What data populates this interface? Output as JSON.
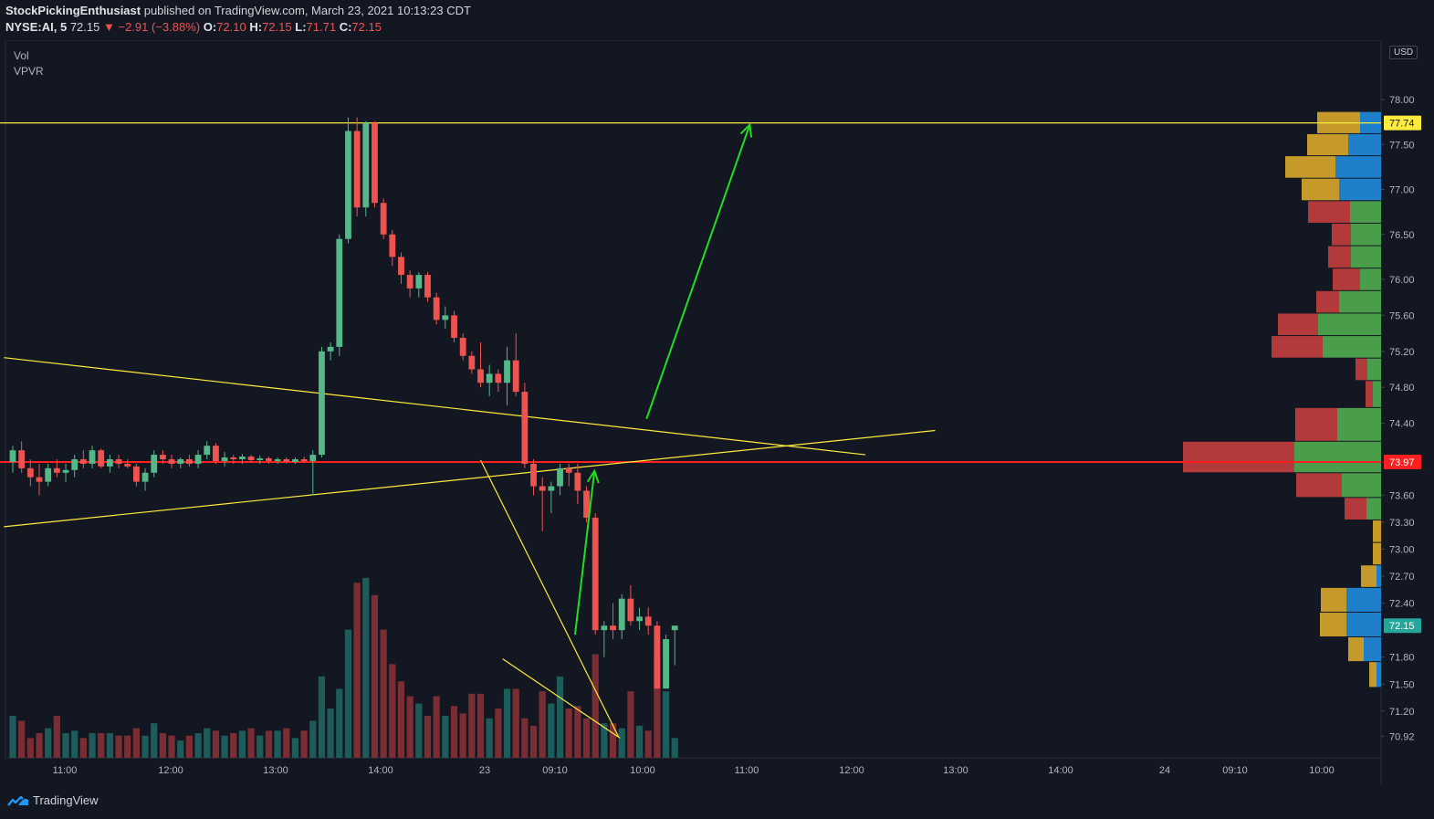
{
  "header": {
    "author": "StockPickingEnthusiast",
    "published": "published on TradingView.com, March 23, 2021 10:13:23 CDT",
    "symbol": "NYSE:AI, 5",
    "last": "72.15",
    "change_arrow": "▼",
    "change": "−2.91 (−3.88%)",
    "o_label": "O:",
    "o": "72.10",
    "h_label": "H:",
    "h": "72.15",
    "l_label": "L:",
    "l": "71.71",
    "c_label": "C:",
    "c": "72.15"
  },
  "legend": {
    "vol": "Vol",
    "vpvr": "VPVR"
  },
  "currency": "USD",
  "footer": {
    "brand": "TradingView",
    "logo_icon": "tradingview-logo-icon"
  },
  "colors": {
    "up": "#26a69a",
    "down": "#ef5350",
    "up_candle": "#54b889",
    "down_candle": "#ef5350",
    "trend": "#ffeb3b",
    "arrow": "#22dd22",
    "level": "#ff1f1f",
    "vpvr_up": "#4a9d4a",
    "vpvr_down": "#b33a3a",
    "vpvr_up_va": "#1e7fcb",
    "vpvr_down_va": "#c59a2a"
  },
  "chart_data": {
    "type": "candlestick",
    "interval": "5",
    "y_axis": {
      "min": 70.8,
      "max": 78.4,
      "ticks": [
        "78.00",
        "77.50",
        "77.00",
        "76.50",
        "76.00",
        "75.60",
        "75.20",
        "74.80",
        "74.40",
        "73.97",
        "73.60",
        "73.30",
        "73.00",
        "72.70",
        "72.40",
        "71.80",
        "71.50",
        "71.20",
        "70.92"
      ]
    },
    "x_axis_ticks": [
      "11:00",
      "12:00",
      "13:00",
      "14:00",
      "23",
      "09:10",
      "10:00",
      "11:00",
      "12:00",
      "13:00",
      "14:00",
      "24",
      "09:10",
      "10:00"
    ],
    "price_labels": [
      {
        "value": 77.74,
        "text": "77.74",
        "style": "level"
      },
      {
        "value": 73.97,
        "text": "73.97",
        "style": "red"
      },
      {
        "value": 72.15,
        "text": "72.15",
        "style": "last"
      }
    ],
    "candles": [
      [
        73.97,
        74.15,
        73.85,
        74.1
      ],
      [
        74.1,
        74.2,
        73.85,
        73.9
      ],
      [
        73.9,
        74.0,
        73.7,
        73.8
      ],
      [
        73.8,
        73.95,
        73.6,
        73.75
      ],
      [
        73.75,
        73.95,
        73.7,
        73.9
      ],
      [
        73.9,
        74.0,
        73.8,
        73.85
      ],
      [
        73.85,
        73.95,
        73.75,
        73.88
      ],
      [
        73.88,
        74.05,
        73.8,
        74.0
      ],
      [
        74.0,
        74.1,
        73.9,
        73.95
      ],
      [
        73.95,
        74.15,
        73.9,
        74.1
      ],
      [
        74.1,
        74.12,
        73.9,
        73.92
      ],
      [
        73.92,
        74.05,
        73.85,
        74.0
      ],
      [
        74.0,
        74.05,
        73.9,
        73.95
      ],
      [
        73.95,
        74.0,
        73.9,
        73.92
      ],
      [
        73.92,
        73.95,
        73.7,
        73.75
      ],
      [
        73.75,
        73.9,
        73.65,
        73.85
      ],
      [
        73.85,
        74.1,
        73.8,
        74.05
      ],
      [
        74.05,
        74.1,
        73.95,
        74.0
      ],
      [
        74.0,
        74.05,
        73.9,
        73.95
      ],
      [
        73.95,
        74.02,
        73.9,
        74.0
      ],
      [
        74.0,
        74.05,
        73.92,
        73.95
      ],
      [
        73.95,
        74.1,
        73.9,
        74.05
      ],
      [
        74.05,
        74.2,
        74.0,
        74.15
      ],
      [
        74.15,
        74.18,
        73.95,
        73.98
      ],
      [
        73.98,
        74.08,
        73.92,
        74.02
      ],
      [
        74.02,
        74.05,
        73.95,
        74.0
      ],
      [
        74.0,
        74.06,
        73.95,
        74.03
      ],
      [
        74.03,
        74.05,
        73.96,
        73.99
      ],
      [
        73.99,
        74.04,
        73.95,
        74.01
      ],
      [
        74.01,
        74.03,
        73.95,
        73.98
      ],
      [
        73.98,
        74.02,
        73.95,
        74.0
      ],
      [
        74.0,
        74.02,
        73.95,
        73.97
      ],
      [
        73.97,
        74.02,
        73.95,
        74.0
      ],
      [
        74.0,
        74.03,
        73.96,
        73.98
      ],
      [
        73.98,
        74.1,
        73.6,
        74.05
      ],
      [
        74.05,
        75.25,
        74.02,
        75.2
      ],
      [
        75.2,
        75.3,
        75.1,
        75.25
      ],
      [
        75.25,
        76.5,
        75.15,
        76.45
      ],
      [
        76.45,
        77.8,
        76.4,
        77.65
      ],
      [
        77.65,
        77.8,
        76.7,
        76.8
      ],
      [
        76.8,
        77.76,
        76.7,
        77.74
      ],
      [
        77.74,
        77.76,
        76.8,
        76.85
      ],
      [
        76.85,
        76.9,
        76.45,
        76.5
      ],
      [
        76.5,
        76.55,
        76.15,
        76.25
      ],
      [
        76.25,
        76.3,
        75.95,
        76.05
      ],
      [
        76.05,
        76.1,
        75.8,
        75.9
      ],
      [
        75.9,
        76.08,
        75.8,
        76.05
      ],
      [
        76.05,
        76.08,
        75.75,
        75.8
      ],
      [
        75.8,
        75.85,
        75.5,
        75.55
      ],
      [
        75.55,
        75.7,
        75.45,
        75.6
      ],
      [
        75.6,
        75.65,
        75.3,
        75.35
      ],
      [
        75.35,
        75.4,
        75.1,
        75.15
      ],
      [
        75.15,
        75.2,
        74.95,
        75.0
      ],
      [
        75.0,
        75.3,
        74.8,
        74.85
      ],
      [
        74.85,
        75.05,
        74.7,
        74.95
      ],
      [
        74.95,
        75.0,
        74.75,
        74.85
      ],
      [
        74.85,
        75.25,
        74.6,
        75.1
      ],
      [
        75.1,
        75.4,
        74.7,
        74.75
      ],
      [
        74.75,
        74.85,
        73.9,
        73.95
      ],
      [
        73.95,
        74.0,
        73.6,
        73.7
      ],
      [
        73.7,
        73.8,
        73.2,
        73.65
      ],
      [
        73.65,
        73.75,
        73.4,
        73.7
      ],
      [
        73.7,
        73.95,
        73.6,
        73.9
      ],
      [
        73.9,
        73.95,
        73.7,
        73.85
      ],
      [
        73.85,
        73.95,
        73.5,
        73.65
      ],
      [
        73.65,
        73.7,
        73.3,
        73.35
      ],
      [
        73.35,
        73.4,
        72.05,
        72.1
      ],
      [
        72.1,
        72.2,
        71.8,
        72.15
      ],
      [
        72.15,
        72.4,
        72.0,
        72.1
      ],
      [
        72.1,
        72.5,
        72.0,
        72.45
      ],
      [
        72.45,
        72.6,
        72.15,
        72.2
      ],
      [
        72.2,
        72.35,
        72.1,
        72.25
      ],
      [
        72.25,
        72.35,
        72.05,
        72.15
      ],
      [
        72.15,
        72.2,
        71.5,
        71.45
      ],
      [
        71.45,
        72.05,
        71.45,
        72.0
      ],
      [
        72.1,
        72.15,
        71.71,
        72.15
      ]
    ],
    "volume": [
      17,
      15,
      8,
      10,
      12,
      17,
      10,
      11,
      8,
      10,
      10,
      10,
      9,
      9,
      12,
      9,
      14,
      10,
      9,
      7,
      9,
      10,
      12,
      11,
      9,
      10,
      11,
      12,
      9,
      11,
      11,
      12,
      8,
      11,
      15,
      33,
      20,
      28,
      52,
      71,
      73,
      66,
      52,
      38,
      31,
      25,
      22,
      17,
      25,
      17,
      21,
      18,
      26,
      26,
      16,
      20,
      28,
      28,
      16,
      13,
      27,
      22,
      33,
      20,
      21,
      16,
      42,
      14,
      14,
      12,
      27,
      13,
      11,
      42,
      27,
      8
    ],
    "volume_profile_rows": [
      {
        "price": 77.74,
        "up": 23,
        "down": 47,
        "value_area": true
      },
      {
        "price": 77.5,
        "up": 36,
        "down": 45,
        "value_area": true
      },
      {
        "price": 77.25,
        "up": 50,
        "down": 55,
        "value_area": true
      },
      {
        "price": 77.0,
        "up": 46,
        "down": 41,
        "value_area": true
      },
      {
        "price": 76.75,
        "up": 34,
        "down": 46,
        "value_area": false
      },
      {
        "price": 76.5,
        "up": 33,
        "down": 21,
        "value_area": false
      },
      {
        "price": 76.25,
        "up": 33,
        "down": 25,
        "value_area": false
      },
      {
        "price": 76.0,
        "up": 23,
        "down": 30,
        "value_area": false
      },
      {
        "price": 75.75,
        "up": 46,
        "down": 25,
        "value_area": false
      },
      {
        "price": 75.5,
        "up": 69,
        "down": 44,
        "value_area": false
      },
      {
        "price": 75.25,
        "up": 64,
        "down": 56,
        "value_area": false
      },
      {
        "price": 75.0,
        "up": 15,
        "down": 13,
        "value_area": false
      },
      {
        "price": 74.75,
        "up": 9,
        "down": 8,
        "value_area": false
      },
      {
        "price": 74.4,
        "up": 48,
        "down": 46,
        "value_area": false
      },
      {
        "price": 74.0,
        "up": 95,
        "down": 122,
        "value_area": false
      },
      {
        "price": 73.7,
        "up": 43,
        "down": 50,
        "value_area": false
      },
      {
        "price": 73.45,
        "up": 16,
        "down": 24,
        "value_area": false
      },
      {
        "price": 73.2,
        "up": 0,
        "down": 9,
        "value_area": true
      },
      {
        "price": 72.95,
        "up": 0,
        "down": 9,
        "value_area": true
      },
      {
        "price": 72.7,
        "up": 5,
        "down": 17,
        "value_area": true
      },
      {
        "price": 72.45,
        "up": 38,
        "down": 28,
        "value_area": true
      },
      {
        "price": 72.15,
        "up": 38,
        "down": 29,
        "value_area": true
      },
      {
        "price": 71.9,
        "up": 19,
        "down": 17,
        "value_area": true
      },
      {
        "price": 71.6,
        "up": 5,
        "down": 8,
        "value_area": true
      }
    ],
    "drawings": {
      "horizontal_levels": [
        {
          "price": 77.74,
          "color": "trend",
          "start_bar": -5
        },
        {
          "price": 73.97,
          "color": "level",
          "start_bar": -30
        }
      ],
      "trendlines": [
        {
          "from": [
            -1,
            75.13
          ],
          "to": [
            96.6,
            74.05
          ],
          "color": "trend"
        },
        {
          "from": [
            -1,
            73.25
          ],
          "to": [
            104.5,
            74.32
          ],
          "color": "trend"
        },
        {
          "from": [
            53,
            73.99
          ],
          "to": [
            68.6,
            70.92
          ],
          "color": "trend"
        },
        {
          "from": [
            55.5,
            71.78
          ],
          "to": [
            68.8,
            70.9
          ],
          "color": "trend"
        }
      ],
      "arrows": [
        {
          "from": [
            63.7,
            72.05
          ],
          "to": [
            65.9,
            73.87
          ],
          "color": "arrow"
        },
        {
          "from": [
            71.8,
            74.45
          ],
          "to": [
            83.5,
            77.72
          ],
          "color": "arrow"
        }
      ]
    }
  }
}
